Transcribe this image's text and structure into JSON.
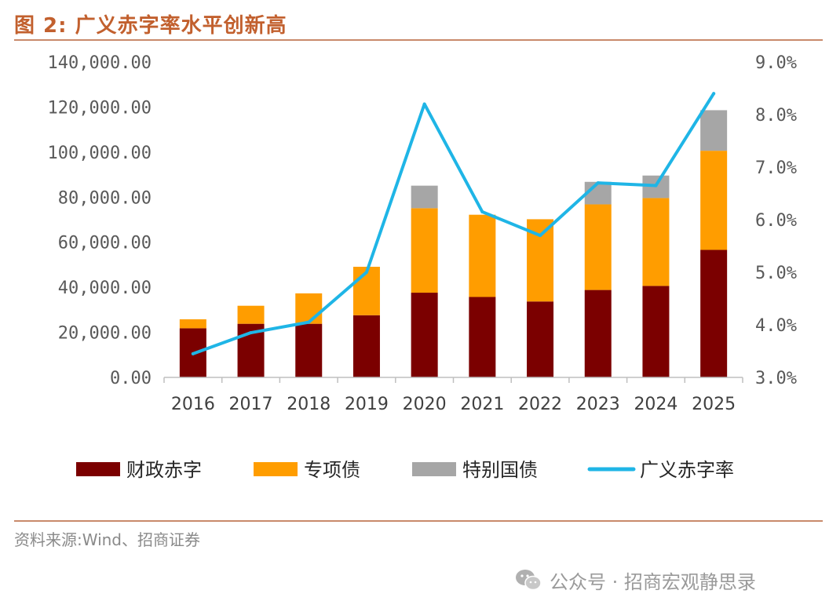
{
  "figure": {
    "title": "图 2:  广义赤字率水平创新高",
    "source": "资料来源:Wind、招商证券",
    "watermark": "公众号 · 招商宏观静思录",
    "watermark_icon": "wechat-icon"
  },
  "chart_data": {
    "type": "bar",
    "stacked": true,
    "categories": [
      "2016",
      "2017",
      "2018",
      "2019",
      "2020",
      "2021",
      "2022",
      "2023",
      "2024",
      "2025"
    ],
    "series": [
      {
        "name": "财政赤字",
        "type": "bar",
        "axis": "left",
        "color": "#7b0000",
        "values": [
          21800,
          23800,
          23800,
          27600,
          37600,
          35700,
          33700,
          38800,
          40600,
          56600
        ]
      },
      {
        "name": "专项债",
        "type": "bar",
        "axis": "left",
        "color": "#ff9d00",
        "values": [
          4000,
          8000,
          13500,
          21500,
          37500,
          36500,
          36500,
          38000,
          39000,
          44000
        ]
      },
      {
        "name": "特别国债",
        "type": "bar",
        "axis": "left",
        "color": "#a6a6a6",
        "values": [
          0,
          0,
          0,
          0,
          10000,
          0,
          0,
          10000,
          10000,
          18000
        ]
      },
      {
        "name": "广义赤字率",
        "type": "line",
        "axis": "right",
        "color": "#1fb5e6",
        "values": [
          3.45,
          3.85,
          4.05,
          5.0,
          8.2,
          6.15,
          5.7,
          6.7,
          6.65,
          8.4
        ]
      }
    ],
    "y_left": {
      "min": 0,
      "max": 140000,
      "ticks": [
        "0.00",
        "20,000.00",
        "40,000.00",
        "60,000.00",
        "80,000.00",
        "100,000.00",
        "120,000.00",
        "140,000.00"
      ]
    },
    "y_right": {
      "min": 3.0,
      "max": 9.0,
      "ticks": [
        "3.0%",
        "4.0%",
        "5.0%",
        "6.0%",
        "7.0%",
        "8.0%",
        "9.0%"
      ]
    },
    "grid": false,
    "legend_position": "bottom"
  }
}
